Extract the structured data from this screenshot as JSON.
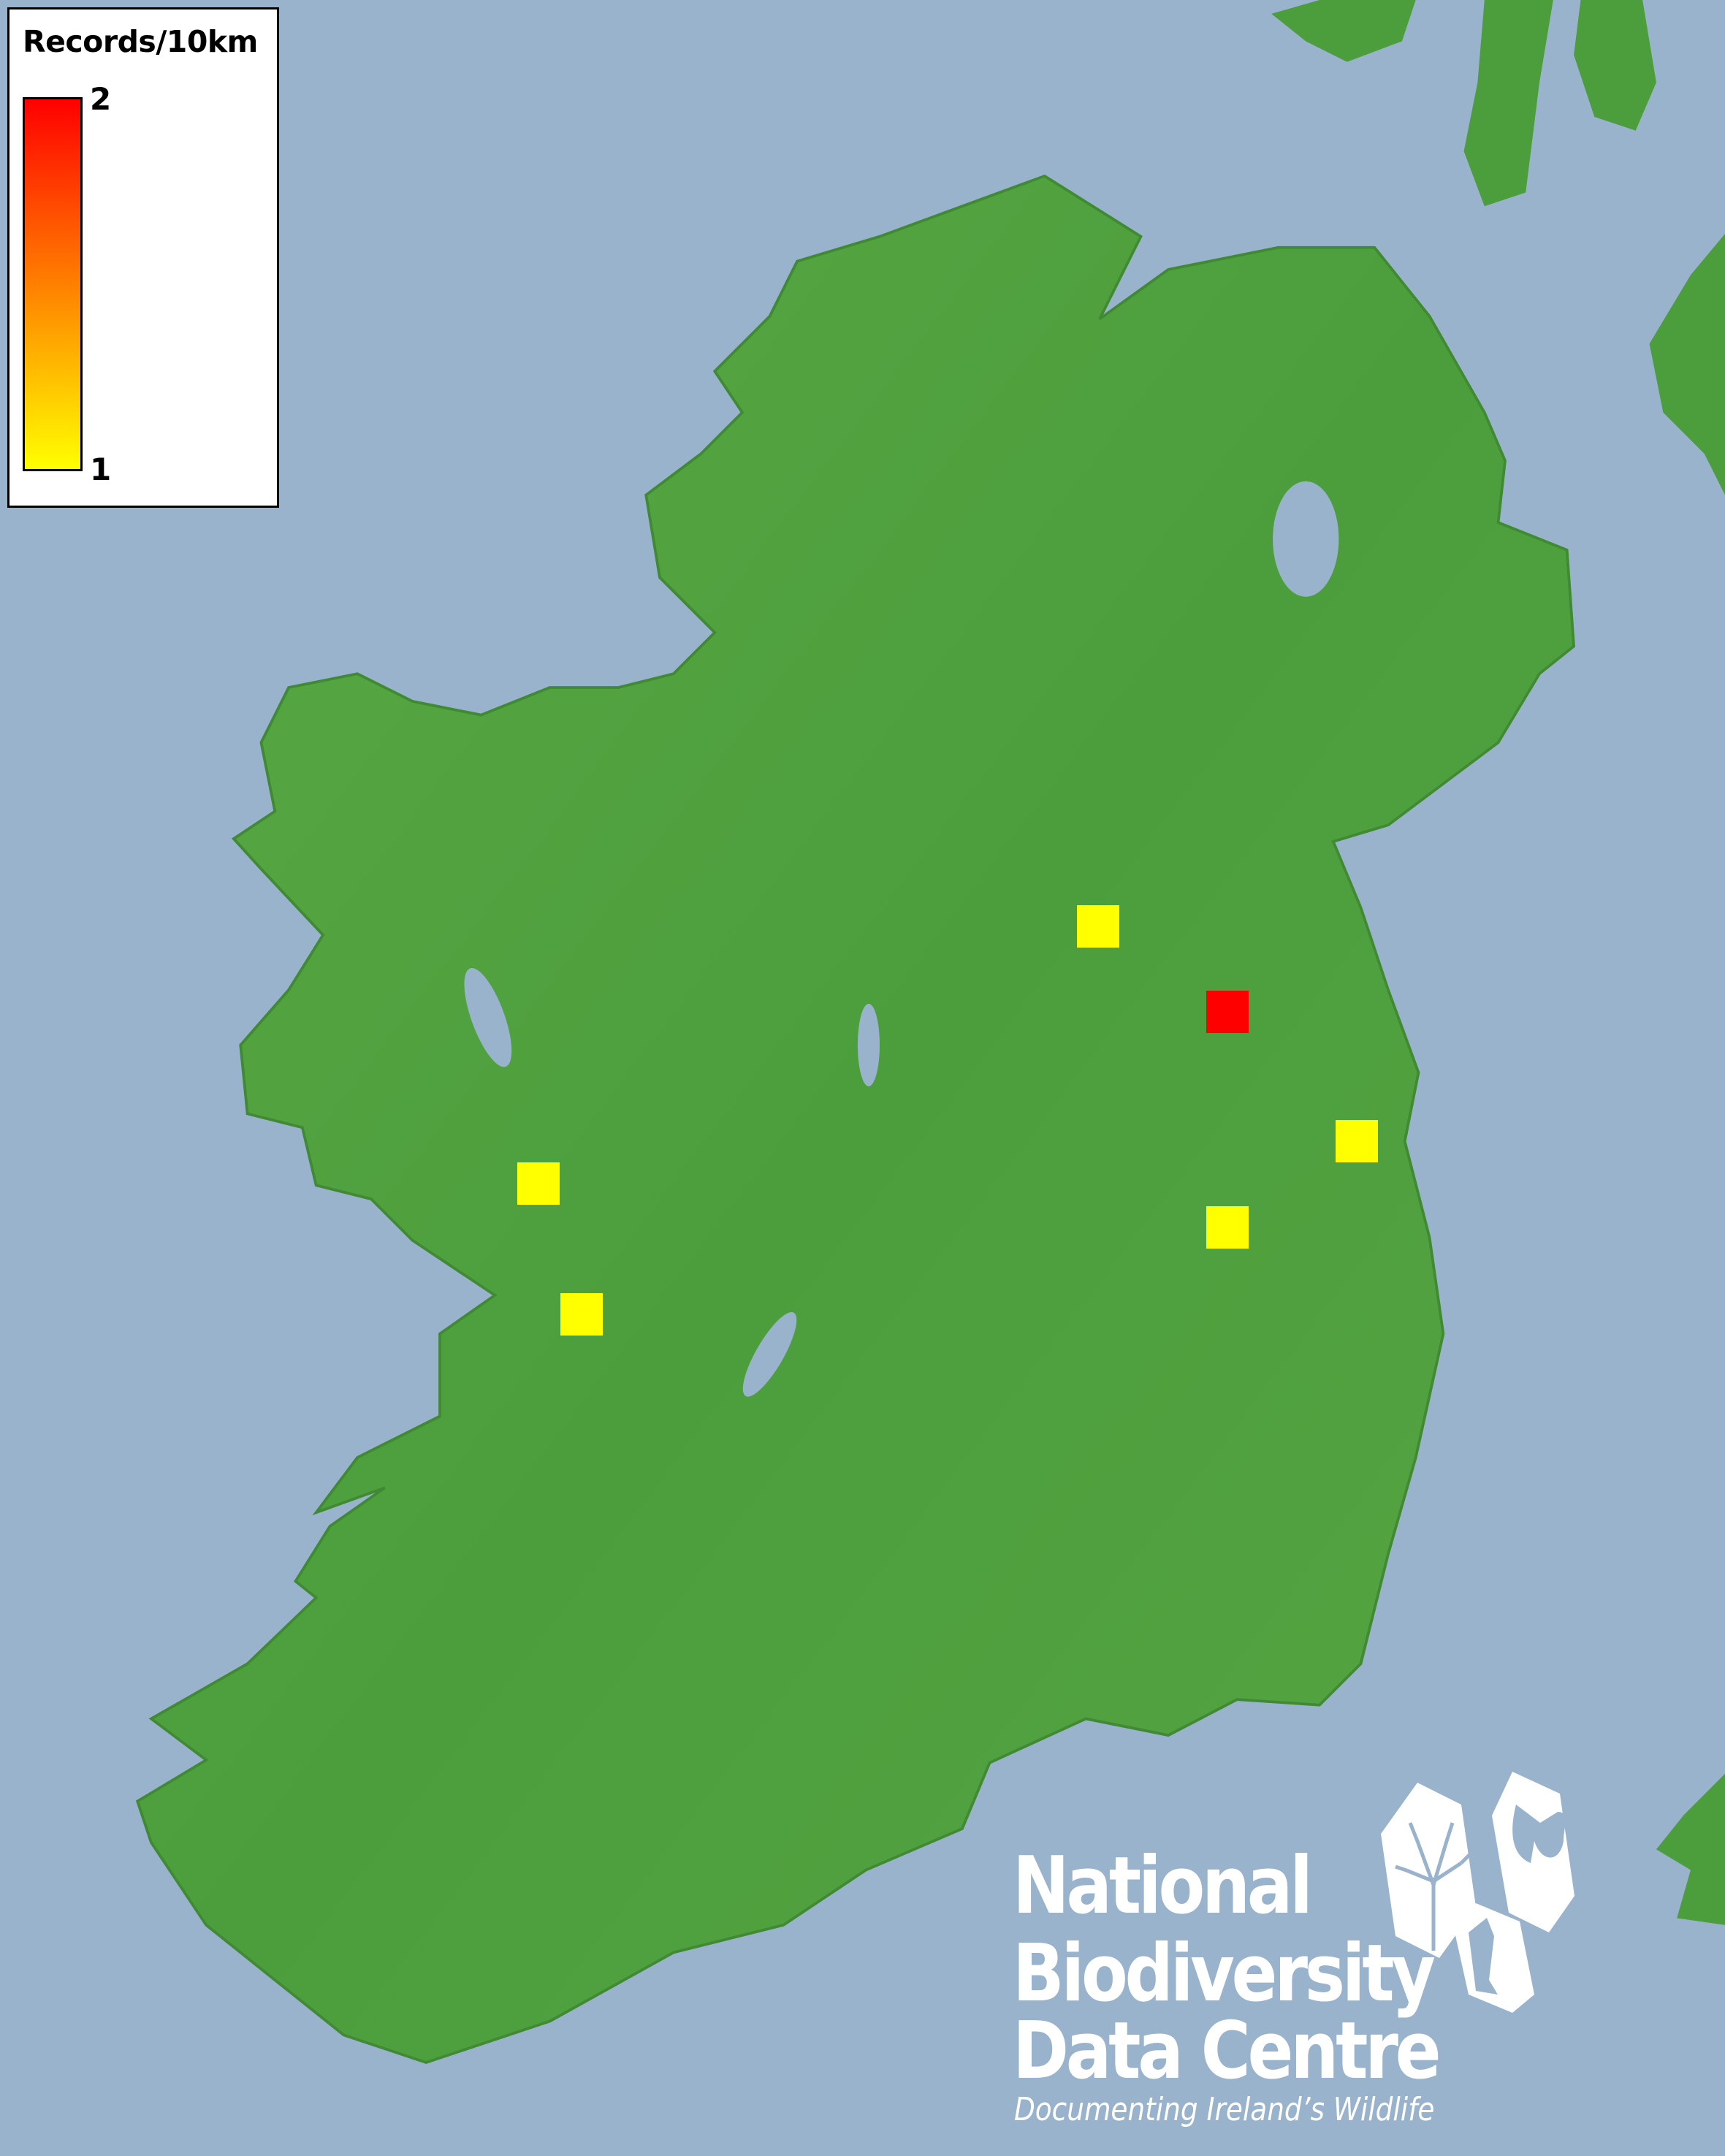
{
  "legend": {
    "title": "Records/10km",
    "max_label": "2",
    "min_label": "1",
    "color_max": "#ff0000",
    "color_min": "#ffff00"
  },
  "records": [
    {
      "value": 1
    },
    {
      "value": 2
    },
    {
      "value": 1
    },
    {
      "value": 1
    },
    {
      "value": 1
    },
    {
      "value": 1
    }
  ],
  "colors": {
    "sea": "#9ab3cc",
    "land": "#4c9e3c",
    "lake": "#9ab3cc"
  },
  "logo": {
    "line1": "National",
    "line2": "Biodiversity",
    "line3": "Data Centre",
    "tagline": "Documenting Ireland’s Wildlife",
    "icons": [
      "tree-icon",
      "butterfly-icon",
      "seahorse-icon"
    ]
  }
}
